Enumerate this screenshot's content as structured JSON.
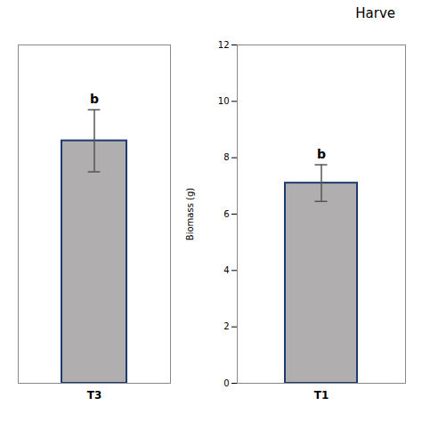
{
  "chart_data": [
    {
      "type": "bar",
      "categories": [
        "T3"
      ],
      "values": [
        8.6
      ],
      "errors": [
        1.1
      ],
      "annotations": [
        "b"
      ],
      "color": "#b0aeae",
      "ylim": [
        0,
        12
      ],
      "tick_labels": "x"
    },
    {
      "type": "bar",
      "title": "Harve",
      "ylabel": "Biomass (g)",
      "categories": [
        "T1"
      ],
      "values": [
        7.1
      ],
      "errors": [
        0.65
      ],
      "annotations": [
        "b"
      ],
      "color": "#b0aeae",
      "ylim": [
        0,
        12
      ],
      "yticks": [
        0,
        2,
        4,
        6,
        8,
        10,
        12
      ]
    }
  ]
}
